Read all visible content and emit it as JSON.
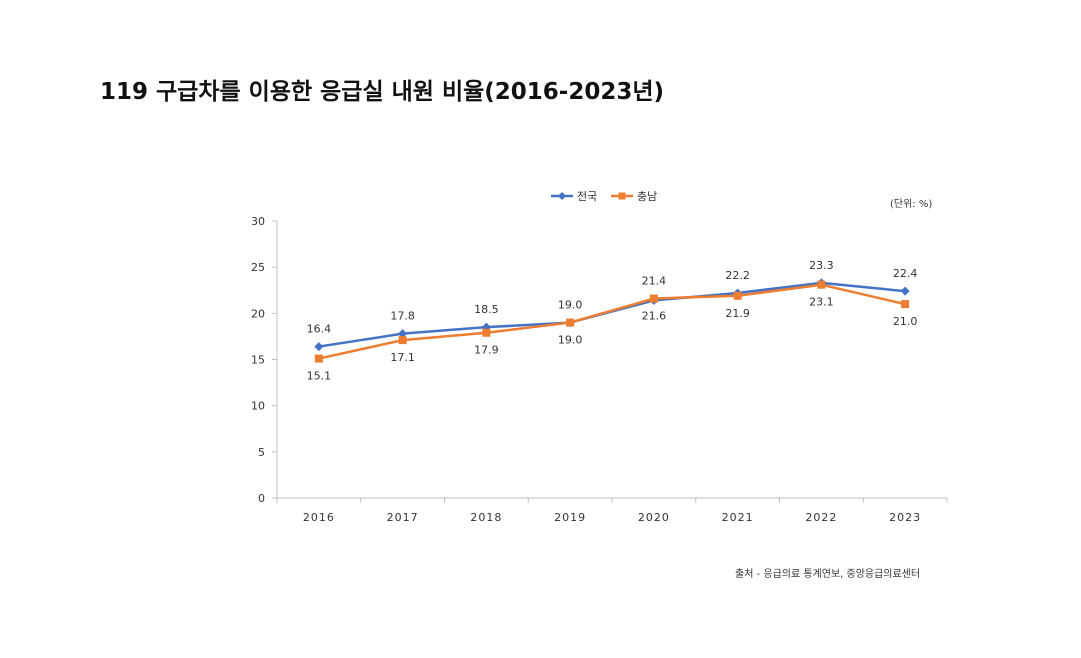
{
  "title": "119 구급차를 이용한 응급실 내원 비율(2016-2023년)",
  "unit_label": "(단위: %)",
  "source_note": "출처 - 응급의료 통계연보, 중앙응급의료센터",
  "colors": {
    "series_1": "#4472C4",
    "series_2": "#ED7D31",
    "axis": "#BFBFBF",
    "text": "#333333"
  },
  "chart_data": {
    "type": "line",
    "title": "119 구급차를 이용한 응급실 내원 비율(2016-2023년)",
    "xlabel": "",
    "ylabel": "",
    "unit": "(단위: %)",
    "categories": [
      "2016",
      "2017",
      "2018",
      "2019",
      "2020",
      "2021",
      "2022",
      "2023"
    ],
    "ylim": [
      0,
      30
    ],
    "yticks": [
      0,
      5,
      10,
      15,
      20,
      25,
      30
    ],
    "grid": false,
    "legend_position": "top-center",
    "series": [
      {
        "name": "전국",
        "marker": "diamond",
        "color": "#4472C4",
        "values": [
          16.4,
          17.8,
          18.5,
          19.0,
          21.4,
          22.2,
          23.3,
          22.4
        ],
        "labels": [
          "16.4",
          "17.8",
          "18.5",
          "19.0",
          "21.4",
          "22.2",
          "23.3",
          "22.4"
        ]
      },
      {
        "name": "충남",
        "marker": "square",
        "color": "#ED7D31",
        "values": [
          15.1,
          17.1,
          17.9,
          19.0,
          21.6,
          21.9,
          23.1,
          21.0
        ],
        "labels": [
          "15.1",
          "17.1",
          "17.9",
          "19.0",
          "21.6",
          "21.9",
          "23.1",
          "21.0"
        ]
      }
    ]
  }
}
